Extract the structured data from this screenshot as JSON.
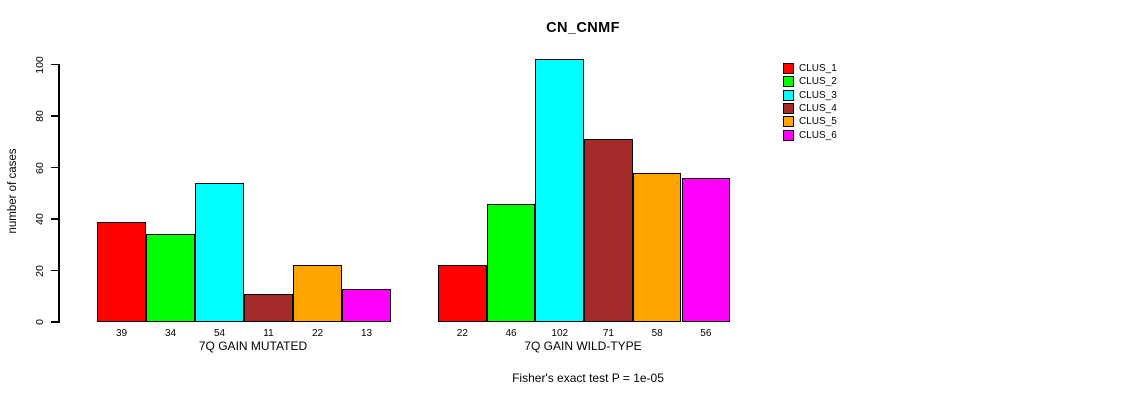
{
  "background_color": "#ffffff",
  "chart_data": {
    "type": "bar",
    "title": "CN_CNMF",
    "ylabel": "number of cases",
    "xlabel": "",
    "annotation": "Fisher's exact test P = 1e-05",
    "y_ticks": [
      0,
      20,
      40,
      60,
      80,
      100
    ],
    "ylim": [
      0,
      100
    ],
    "grid": false,
    "legend_position": "right",
    "series_names": [
      "CLUS_1",
      "CLUS_2",
      "CLUS_3",
      "CLUS_4",
      "CLUS_5",
      "CLUS_6"
    ],
    "colors": [
      "#ff0000",
      "#00ff00",
      "#00ffff",
      "#a52a2a",
      "#ffa500",
      "#ff00ff"
    ],
    "groups": [
      {
        "label": "7Q GAIN MUTATED",
        "values": [
          39,
          34,
          54,
          11,
          22,
          13
        ]
      },
      {
        "label": "7Q GAIN WILD-TYPE",
        "values": [
          22,
          46,
          102,
          71,
          58,
          56
        ]
      }
    ],
    "bar_borders": "#000000",
    "axis_color": "#000000"
  }
}
